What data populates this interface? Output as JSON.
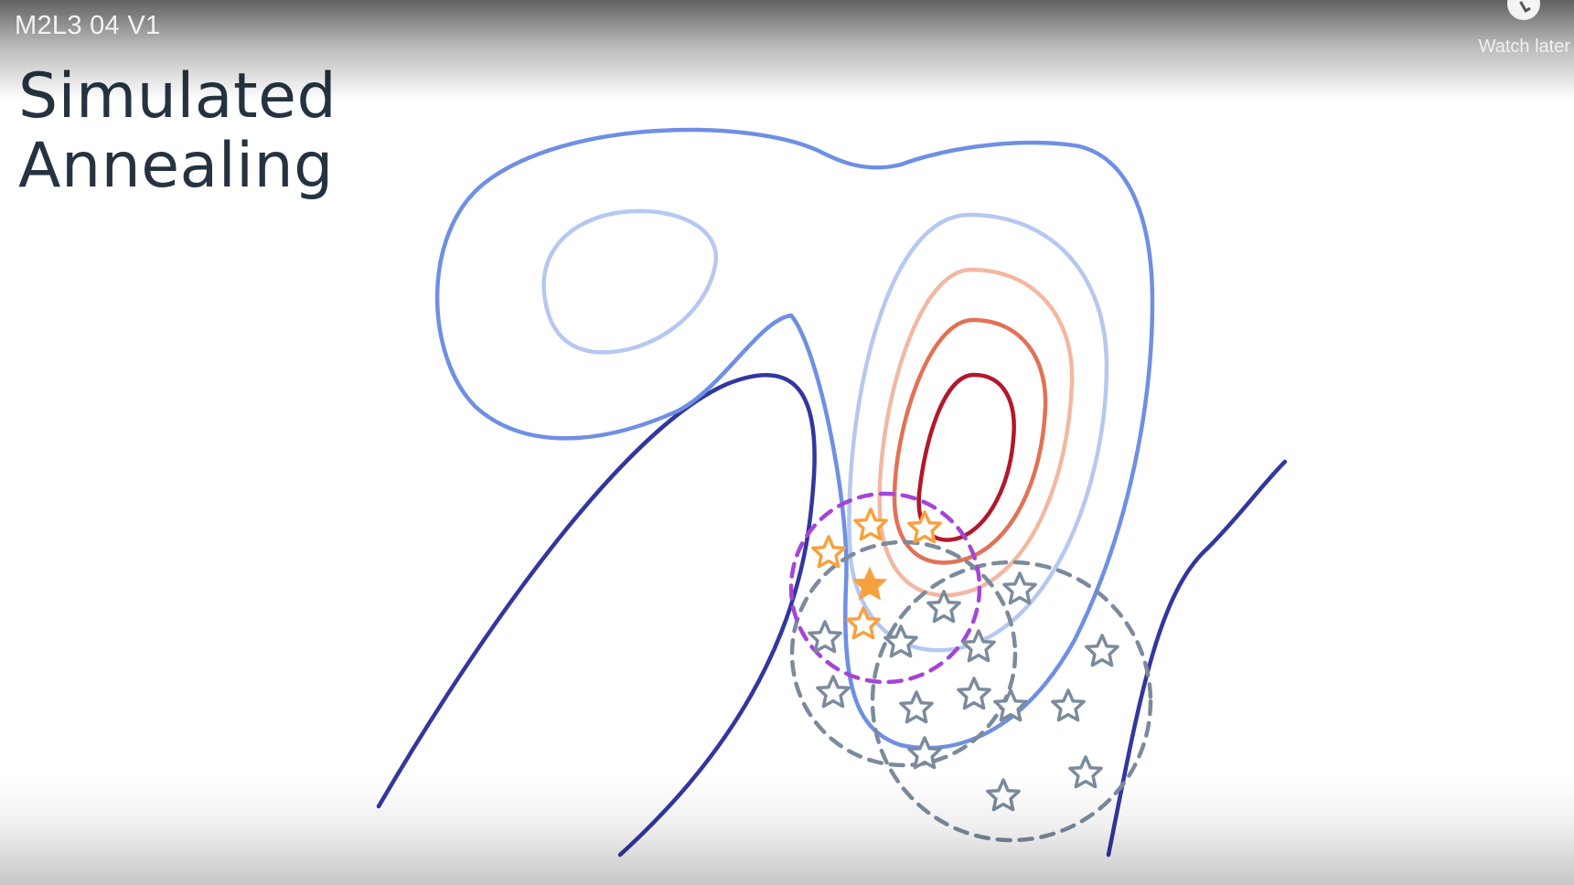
{
  "video": {
    "title": "M2L3 04 V1",
    "watch_later_label": "Watch later",
    "watch_later_icon": "clock-icon"
  },
  "slide": {
    "title_line1": "Simulated",
    "title_line2": "Annealing"
  },
  "diagram": {
    "contour_colors": [
      "#31379f",
      "#6f8fe4",
      "#b6c8f0",
      "#f2b8a2",
      "#e27156",
      "#b2182b"
    ],
    "current_solution_color": "#f7a13e",
    "neighbor_star_color": "#f7a13e",
    "candidate_star_color": "#7b8b9d",
    "current_neighborhood_color": "#a545d6",
    "candidate_neighborhood_color": "#7b8b9d"
  }
}
